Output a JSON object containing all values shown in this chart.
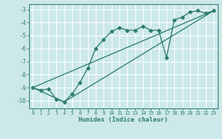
{
  "xlabel": "Humidex (Indice chaleur)",
  "bg_color": "#cce8e8",
  "grid_color": "#ffffff",
  "line_color": "#2e7d6e",
  "marker": "D",
  "markersize": 2.5,
  "linewidth": 1.0,
  "xlim": [
    -0.5,
    23.5
  ],
  "ylim": [
    -10.6,
    -2.6
  ],
  "xticks": [
    0,
    1,
    2,
    3,
    4,
    5,
    6,
    7,
    8,
    9,
    10,
    11,
    12,
    13,
    14,
    15,
    16,
    17,
    18,
    19,
    20,
    21,
    22,
    23
  ],
  "yticks": [
    -10,
    -9,
    -8,
    -7,
    -6,
    -5,
    -4,
    -3
  ],
  "line1_x": [
    0,
    1,
    2,
    3,
    4,
    5,
    6,
    7,
    8,
    9,
    10,
    11,
    12,
    13,
    14,
    15,
    16,
    17,
    18,
    19,
    20,
    21,
    22,
    23
  ],
  "line1_y": [
    -9.0,
    -9.2,
    -9.1,
    -9.9,
    -10.1,
    -9.5,
    -8.6,
    -7.5,
    -6.0,
    -5.3,
    -4.7,
    -4.4,
    -4.6,
    -4.6,
    -4.3,
    -4.6,
    -4.6,
    -6.7,
    -3.8,
    -3.6,
    -3.2,
    -3.1,
    -3.3,
    -3.1
  ],
  "line2_x": [
    0,
    23
  ],
  "line2_y": [
    -9.0,
    -3.1
  ],
  "line3_x": [
    0,
    4,
    23
  ],
  "line3_y": [
    -9.0,
    -10.1,
    -3.1
  ]
}
